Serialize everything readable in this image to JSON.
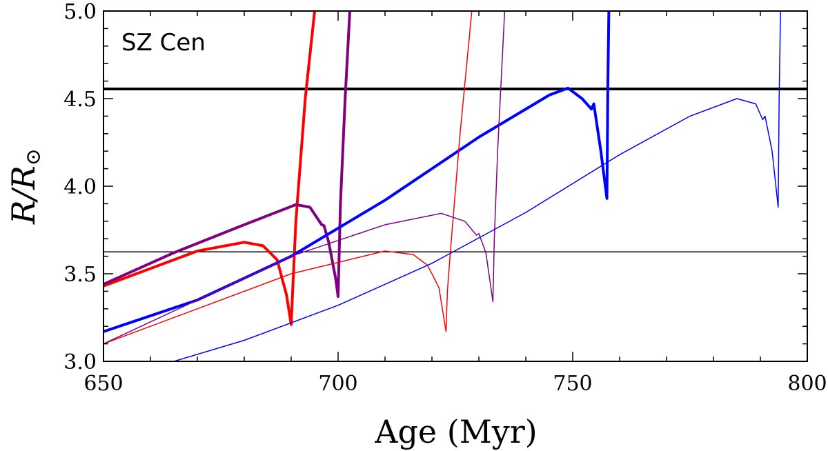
{
  "chart_data": {
    "type": "line",
    "title": "",
    "annotation": "SZ Cen",
    "xlabel": "Age (Myr)",
    "ylabel_main": "R/R",
    "ylabel_sub": "⊙",
    "xlim": [
      650,
      800
    ],
    "ylim": [
      3.0,
      5.0
    ],
    "x_ticks": [
      650,
      700,
      750,
      800
    ],
    "y_ticks": [
      3.0,
      3.5,
      4.0,
      4.5,
      5.0
    ],
    "x_minor_step": 10,
    "y_minor_step": 0.1,
    "reference_lines": [
      {
        "name": "radius-upper",
        "y": 4.555,
        "color": "#000000",
        "weight": "thick"
      },
      {
        "name": "radius-lower",
        "y": 3.625,
        "color": "#000000",
        "weight": "thin"
      }
    ],
    "series": [
      {
        "name": "red-thick",
        "color": "#ff0000",
        "weight": "thick",
        "x": [
          650,
          660,
          670,
          680,
          684,
          687,
          689,
          690,
          690.4,
          691,
          693,
          695
        ],
        "y": [
          3.43,
          3.53,
          3.63,
          3.68,
          3.66,
          3.58,
          3.38,
          3.21,
          3.45,
          3.8,
          4.5,
          5.0
        ]
      },
      {
        "name": "purple-thick",
        "color": "#800080",
        "weight": "thick",
        "x": [
          650,
          665,
          680,
          691,
          694,
          696.5,
          697,
          698,
          699.5,
          700,
          700.5,
          701.5,
          702.5
        ],
        "y": [
          3.44,
          3.62,
          3.78,
          3.895,
          3.88,
          3.78,
          3.775,
          3.68,
          3.47,
          3.37,
          3.9,
          4.5,
          5.0
        ]
      },
      {
        "name": "blue-thick",
        "color": "#0000ff",
        "weight": "thick",
        "x": [
          650,
          670,
          690,
          710,
          730,
          745,
          749,
          752,
          754,
          754.5,
          756,
          757.3,
          757.5,
          757.7
        ],
        "y": [
          3.17,
          3.35,
          3.6,
          3.92,
          4.28,
          4.52,
          4.56,
          4.5,
          4.44,
          4.47,
          4.2,
          3.93,
          4.6,
          5.0
        ]
      },
      {
        "name": "red-thin",
        "color": "#ff0000",
        "weight": "thin",
        "x": [
          650,
          670,
          690,
          710,
          716,
          719,
          720,
          721.5,
          723,
          723.3,
          724,
          726,
          728.5
        ],
        "y": [
          3.1,
          3.3,
          3.5,
          3.63,
          3.61,
          3.55,
          3.5,
          3.42,
          3.17,
          3.4,
          3.65,
          4.3,
          5.0
        ]
      },
      {
        "name": "purple-thin",
        "color": "#800080",
        "weight": "thin",
        "x": [
          650,
          670,
          690,
          710,
          722,
          727,
          729.5,
          730,
          731.5,
          733,
          733.3,
          734,
          735.5
        ],
        "y": [
          3.1,
          3.35,
          3.6,
          3.78,
          3.845,
          3.8,
          3.72,
          3.73,
          3.62,
          3.34,
          3.7,
          4.2,
          5.0
        ]
      },
      {
        "name": "blue-thin",
        "color": "#0000ff",
        "weight": "thin",
        "x": [
          665,
          680,
          700,
          720,
          740,
          760,
          775,
          785,
          789,
          790.5,
          791,
          792.5,
          793.8,
          794,
          794.3
        ],
        "y": [
          3.0,
          3.12,
          3.32,
          3.56,
          3.85,
          4.18,
          4.4,
          4.5,
          4.47,
          4.38,
          4.4,
          4.2,
          3.88,
          4.5,
          5.0
        ]
      }
    ]
  }
}
